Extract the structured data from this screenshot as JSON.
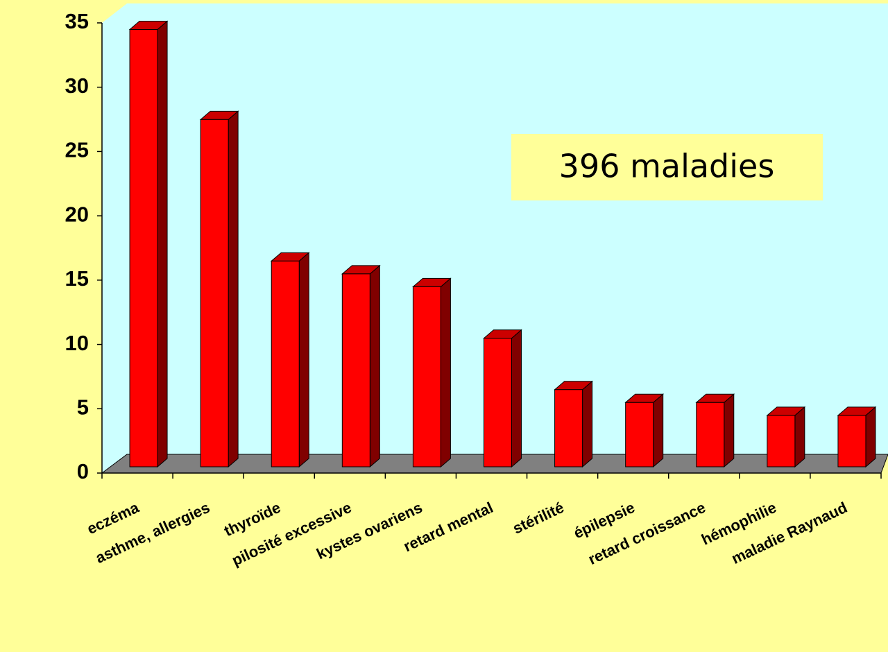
{
  "chart_data": {
    "type": "bar",
    "categories": [
      "eczéma",
      "asthme, allergies",
      "thyroïde",
      "pilosité excessive",
      "kystes ovariens",
      "retard mental",
      "stérilité",
      "épilepsie",
      "retard croissance",
      "hémophilie",
      "maladie Raynaud"
    ],
    "values": [
      34,
      27,
      16,
      15,
      14,
      10,
      6,
      5,
      5,
      4,
      4
    ],
    "color": "#ff0000",
    "ylim": [
      0,
      35
    ],
    "yticks": [
      0,
      5,
      10,
      15,
      20,
      25,
      30,
      35
    ],
    "grid": false,
    "annotation": "396 maladies"
  }
}
